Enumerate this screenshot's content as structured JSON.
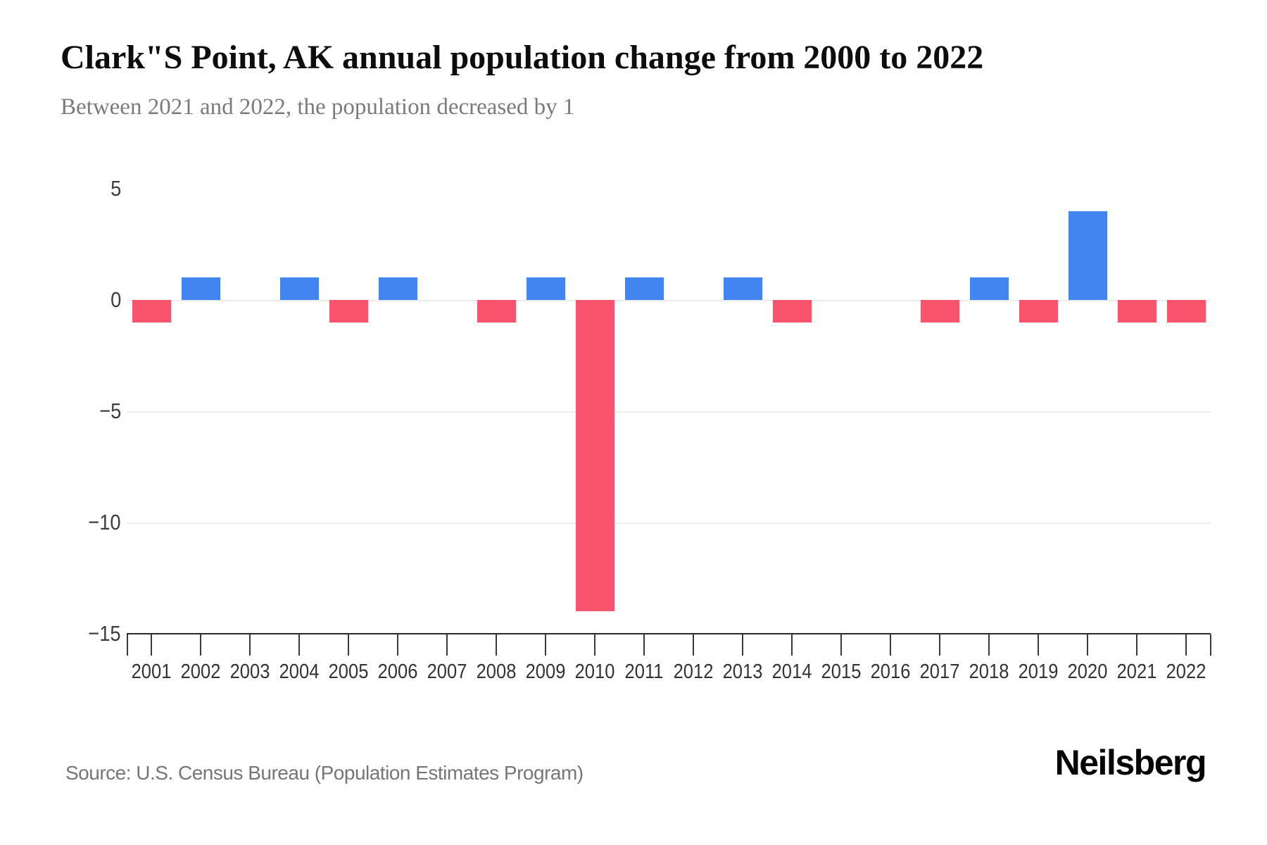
{
  "header": {
    "title": "Clark\"S Point, AK annual population change from 2000 to 2022",
    "subtitle": "Between 2021 and 2022, the population decreased by 1"
  },
  "chart_data": {
    "type": "bar",
    "title": "Clark\"S Point, AK annual population change from 2000 to 2022",
    "subtitle": "Between 2021 and 2022, the population decreased by 1",
    "categories": [
      "2001",
      "2002",
      "2003",
      "2004",
      "2005",
      "2006",
      "2007",
      "2008",
      "2009",
      "2010",
      "2011",
      "2012",
      "2013",
      "2014",
      "2015",
      "2016",
      "2017",
      "2018",
      "2019",
      "2020",
      "2021",
      "2022"
    ],
    "values": [
      -1,
      1,
      0,
      1,
      -1,
      1,
      0,
      -1,
      1,
      -14,
      1,
      0,
      1,
      -1,
      0,
      0,
      -1,
      1,
      -1,
      4,
      -1,
      -1
    ],
    "xlabel": "",
    "ylabel": "",
    "ylim": [
      -15,
      5
    ],
    "yticks": [
      5,
      0,
      -5,
      -10,
      -15
    ],
    "gridlines_at": [
      0,
      -5,
      -10
    ],
    "grid": "horizontal-light",
    "legend": "none",
    "positive_color": "#4385f0",
    "negative_color": "#f8546e"
  },
  "footer": {
    "source": "Source: U.S. Census Bureau (Population Estimates Program)",
    "brand": "Neilsberg"
  }
}
